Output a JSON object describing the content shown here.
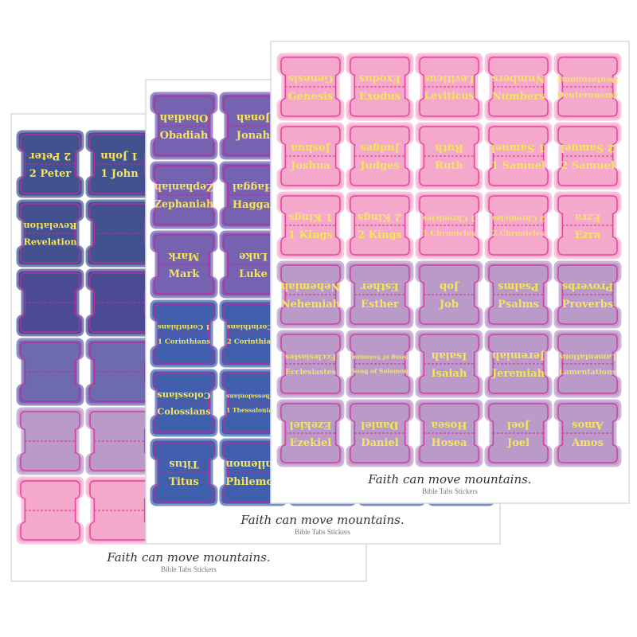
{
  "palette": {
    "text": "#f6e45c",
    "pink": {
      "fill": "#f4a9cc",
      "line": "#e8439b",
      "halo": "#f8c6de"
    },
    "lavender": {
      "fill": "#b99ac8",
      "line": "#d43fa0",
      "halo": "#cdb6da"
    },
    "purple": {
      "fill": "#7563b2",
      "line": "#b4309c",
      "halo": "#9a8ccb"
    },
    "violet": {
      "fill": "#6e6ab0",
      "line": "#b4309c",
      "halo": "#958fc8"
    },
    "indigo": {
      "fill": "#4a4b94",
      "line": "#b4309c",
      "halo": "#7e7fb5"
    },
    "navy": {
      "fill": "#41528f",
      "line": "#b4309c",
      "halo": "#7884b0"
    },
    "blue": {
      "fill": "#4060ad",
      "line": "#b4309c",
      "halo": "#7a8fc8"
    }
  },
  "sheets": [
    {
      "id": "back",
      "footer_title": "Faith can move mountains.",
      "footer_subtitle": "Bible Tabs Stickers",
      "rows": [
        {
          "color": "navy",
          "tabs": [
            "2 Peter",
            "1 John",
            "",
            "",
            ""
          ]
        },
        {
          "color": "navy",
          "tabs": [
            "Revelation",
            "",
            "",
            "",
            ""
          ]
        },
        {
          "color": "indigo",
          "tabs": [
            "",
            "",
            "",
            "",
            ""
          ]
        },
        {
          "color": "violet",
          "tabs": [
            "",
            "",
            "",
            "",
            ""
          ]
        },
        {
          "color": "lavender",
          "tabs": [
            "",
            "",
            "",
            "",
            ""
          ]
        },
        {
          "color": "pink",
          "tabs": [
            "",
            "",
            "",
            "",
            ""
          ]
        }
      ]
    },
    {
      "id": "middle",
      "footer_title": "Faith can move mountains.",
      "footer_subtitle": "Bible Tabs Stickers",
      "rows": [
        {
          "color": "purple",
          "tabs": [
            "Obadiah",
            "Jonah",
            "",
            "",
            ""
          ]
        },
        {
          "color": "purple",
          "tabs": [
            "Zephaniah",
            "Haggai",
            "",
            "",
            ""
          ]
        },
        {
          "color": "purple",
          "tabs": [
            "Mark",
            "Luke",
            "",
            "",
            ""
          ]
        },
        {
          "color": "blue",
          "tabs": [
            "1 Corinthians",
            "2 Corinthians",
            "",
            "",
            ""
          ]
        },
        {
          "color": "blue",
          "tabs": [
            "Colossians",
            "1 Thessalonians",
            "",
            "",
            ""
          ]
        },
        {
          "color": "blue",
          "tabs": [
            "Titus",
            "Philemon",
            "",
            "",
            ""
          ]
        }
      ]
    },
    {
      "id": "front",
      "footer_title": "Faith can move mountains.",
      "footer_subtitle": "Bible Tabs Stickers",
      "rows": [
        {
          "color": "pink",
          "tabs": [
            "Genesis",
            "Exodus",
            "Leviticus",
            "Numbers",
            "Deuteronomy"
          ]
        },
        {
          "color": "pink",
          "tabs": [
            "Joshua",
            "Judges",
            "Ruth",
            "1 Samuel",
            "2 Samuel"
          ]
        },
        {
          "color": "pink",
          "tabs": [
            "1 Kings",
            "2 Kings",
            "1 Chronicles",
            "2 Chronicles",
            "Ezra"
          ]
        },
        {
          "color": "lavender",
          "tabs": [
            "Nehemiah",
            "Esther",
            "Job",
            "Psalms",
            "Proverbs"
          ]
        },
        {
          "color": "lavender",
          "tabs": [
            "Ecclesiastes",
            "Song of Solomon",
            "Isaiah",
            "Jeremiah",
            "Lamentations"
          ]
        },
        {
          "color": "lavender",
          "tabs": [
            "Ezekiel",
            "Daniel",
            "Hosea",
            "Joel",
            "Amos"
          ]
        }
      ]
    }
  ]
}
